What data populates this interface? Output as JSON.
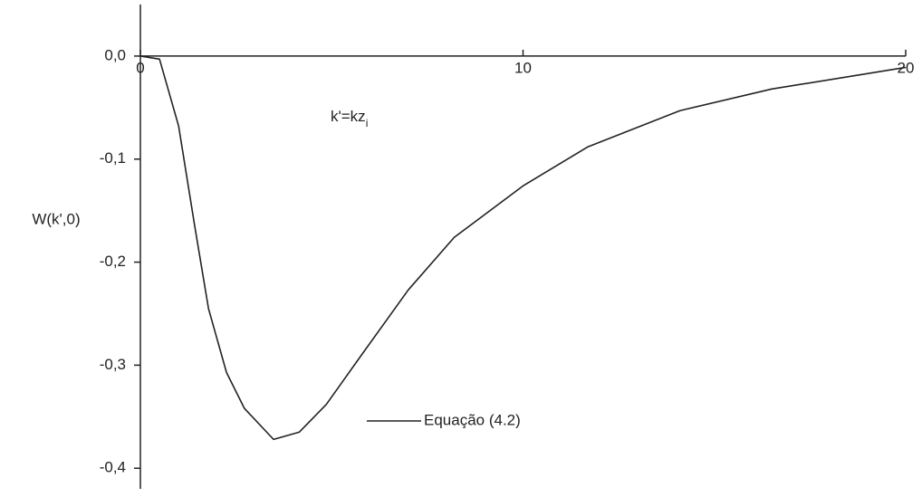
{
  "chart_data": {
    "type": "line",
    "x_label": {
      "text": "k'=kz",
      "subscript": "i"
    },
    "y_label": "W(k',0)",
    "x": [
      0,
      0.5,
      1,
      1.42,
      1.78,
      2.25,
      2.72,
      3.48,
      4.15,
      4.86,
      5.8,
      7,
      8.2,
      10,
      11.7,
      14.1,
      16.5,
      20
    ],
    "series": [
      {
        "name": "Equação (4.2)",
        "color": "#222222",
        "values": [
          0,
          -0.003,
          -0.068,
          -0.165,
          -0.245,
          -0.307,
          -0.342,
          -0.372,
          -0.365,
          -0.338,
          -0.289,
          -0.227,
          -0.176,
          -0.126,
          -0.088,
          -0.053,
          -0.032,
          -0.011
        ]
      }
    ],
    "xlim": [
      0,
      20
    ],
    "xticks": [
      0,
      10,
      20
    ],
    "ylim": [
      -0.42,
      0.05
    ],
    "yticks": [
      {
        "value": 0,
        "label": "0,0"
      },
      {
        "value": -0.1,
        "label": "-0,1"
      },
      {
        "value": -0.2,
        "label": "-0,2"
      },
      {
        "value": -0.3,
        "label": "-0,3"
      },
      {
        "value": -0.4,
        "label": "-0,4"
      }
    ]
  }
}
